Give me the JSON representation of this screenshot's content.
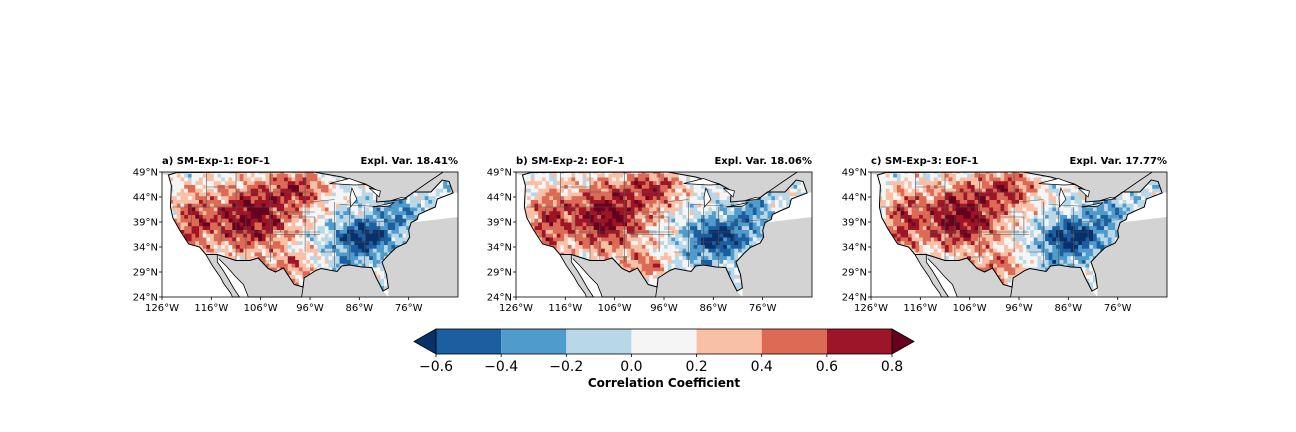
{
  "figure": {
    "panels": [
      {
        "title": "a) SM-Exp-1: EOF-1",
        "expl_var": "Expl. Var. 18.41%"
      },
      {
        "title": "b) SM-Exp-2: EOF-1",
        "expl_var": "Expl. Var. 18.06%"
      },
      {
        "title": "c) SM-Exp-3: EOF-1",
        "expl_var": "Expl. Var. 17.77%"
      }
    ],
    "lat_ticks": [
      "49°N",
      "44°N",
      "39°N",
      "34°N",
      "29°N",
      "24°N"
    ],
    "lon_ticks": [
      "126°W",
      "116°W",
      "106°W",
      "96°W",
      "86°W",
      "76°W"
    ]
  },
  "chart_data": {
    "type": "heatmap",
    "domain": {
      "lon": [
        -126,
        -66
      ],
      "lat": [
        24,
        49
      ]
    },
    "pattern": "positive correlations over western and central US, negative over southeastern US",
    "colorbar": {
      "label": "Correlation Coefficient",
      "ticks": [
        "−0.6",
        "−0.4",
        "−0.2",
        "0.0",
        "0.2",
        "0.4",
        "0.6",
        "0.8"
      ],
      "bounds": [
        -0.6,
        -0.4,
        -0.2,
        0.0,
        0.2,
        0.4,
        0.6,
        0.8
      ],
      "colors": [
        "#08306b",
        "#1b5fa0",
        "#4f9bcb",
        "#b8d8ea",
        "#f5f5f5",
        "#f9c0a5",
        "#dc6a55",
        "#9e1527",
        "#67001f"
      ],
      "extend": "both"
    },
    "land_mask_color": "#d3d3d3"
  }
}
